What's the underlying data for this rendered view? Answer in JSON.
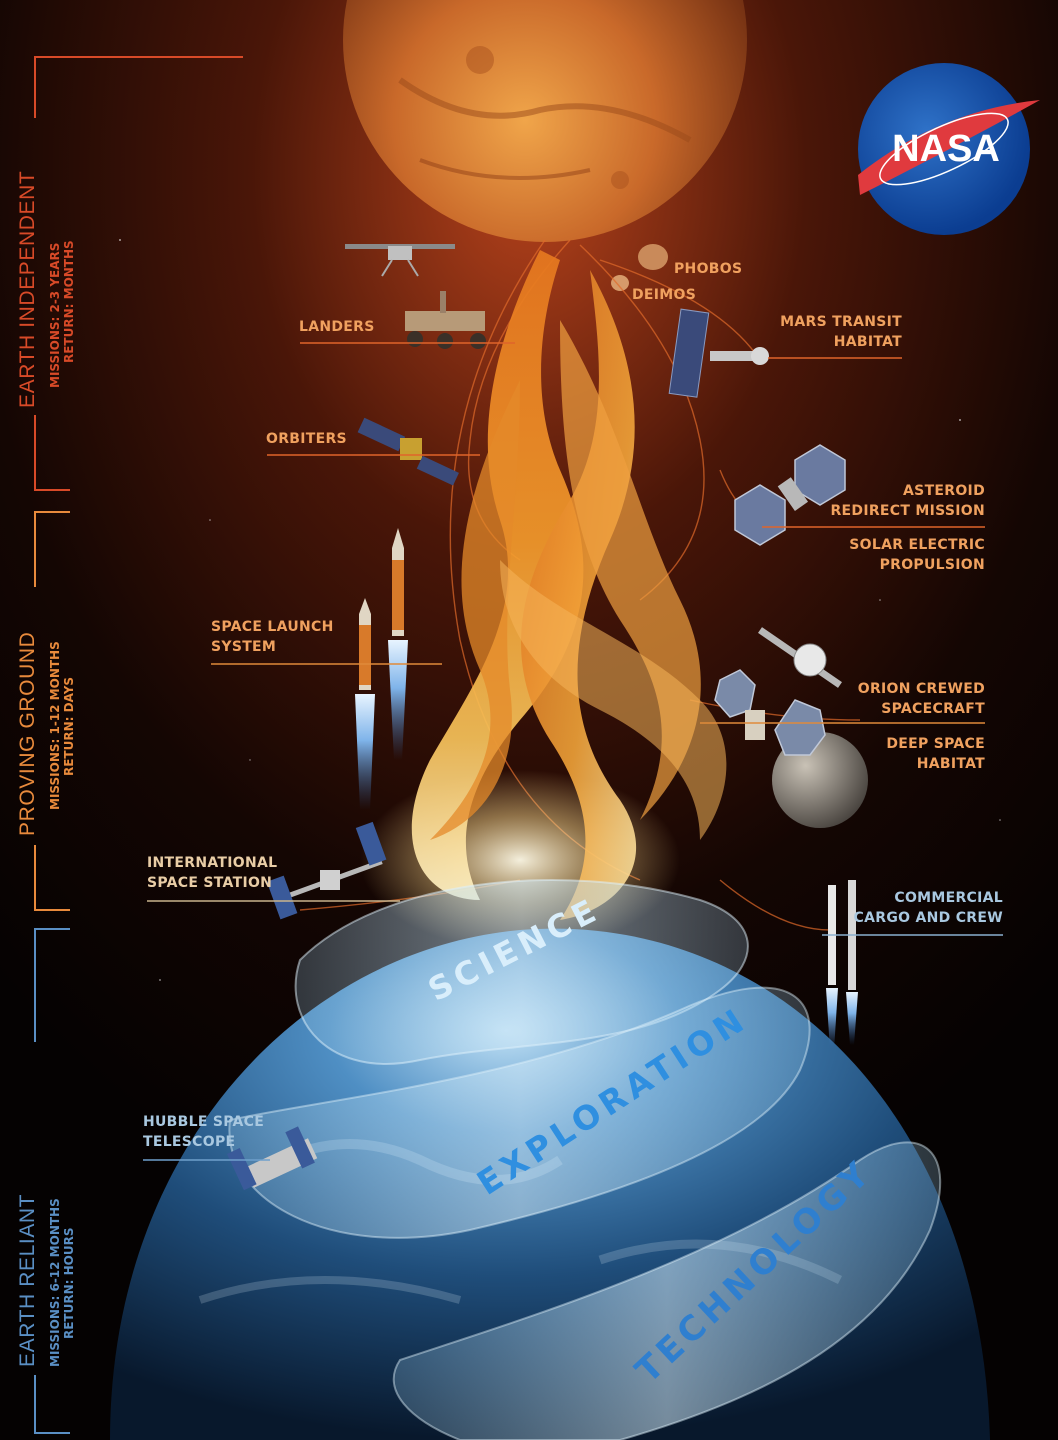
{
  "logo": {
    "text": "NASA"
  },
  "phases": [
    {
      "name": "EARTH INDEPENDENT",
      "missions": "MISSIONS: 2-3 YEARS",
      "return": "RETURN: MONTHS",
      "color": "#d84a28"
    },
    {
      "name": "PROVING GROUND",
      "missions": "MISSIONS: 1-12 MONTHS",
      "return": "RETURN: DAYS",
      "color": "#e88a3c"
    },
    {
      "name": "EARTH RELIANT",
      "missions": "MISSIONS: 6-12 MONTHS",
      "return": "RETURN: HOURS",
      "color": "#5a8fc4"
    }
  ],
  "left_labels": {
    "landers": "LANDERS",
    "orbiters": "ORBITERS",
    "sls": [
      "SPACE LAUNCH",
      "SYSTEM"
    ],
    "iss": [
      "INTERNATIONAL",
      "SPACE STATION"
    ],
    "hubble": [
      "HUBBLE SPACE",
      "TELESCOPE"
    ]
  },
  "right_labels": {
    "phobos": "PHOBOS",
    "deimos": "DEIMOS",
    "mars_transit": [
      "MARS TRANSIT",
      "HABITAT"
    ],
    "asteroid": [
      "ASTEROID",
      "REDIRECT MISSION"
    ],
    "sep": [
      "SOLAR ELECTRIC",
      "PROPULSION"
    ],
    "orion": [
      "ORION CREWED",
      "SPACECRAFT"
    ],
    "deep_space": [
      "DEEP SPACE",
      "HABITAT"
    ],
    "commercial": [
      "COMMERCIAL",
      "CARGO AND CREW"
    ]
  },
  "bands": [
    "SCIENCE",
    "EXPLORATION",
    "TECHNOLOGY"
  ],
  "colors": {
    "mars": "#c8652a",
    "earth": "#2d5f8c",
    "flame": "#f29a2e",
    "label_orange": "#f0a15f",
    "label_blue": "#a9c8e0"
  }
}
